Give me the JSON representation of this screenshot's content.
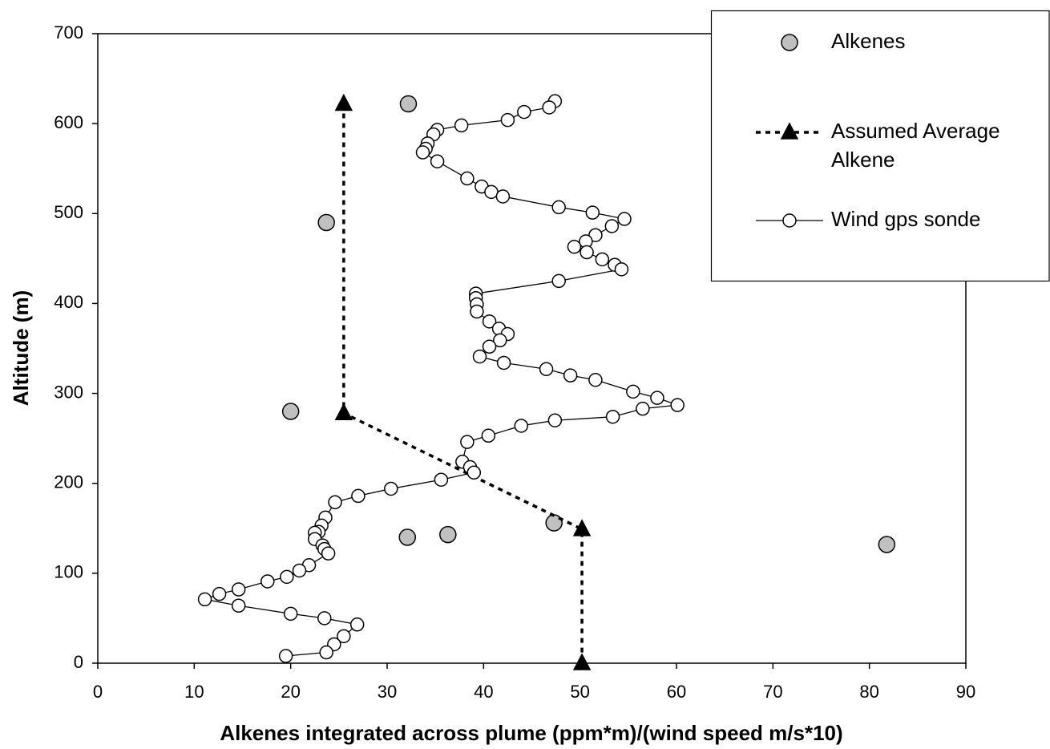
{
  "chart_data": {
    "type": "scatter",
    "xlabel": "Alkenes integrated across plume (ppm*m)/(wind speed m/s*10)",
    "ylabel": "Altitude (m)",
    "xlim": [
      0,
      90
    ],
    "xticks": [
      0,
      10,
      20,
      30,
      40,
      50,
      60,
      70,
      80,
      90
    ],
    "ylim": [
      0,
      700
    ],
    "yticks": [
      0,
      100,
      200,
      300,
      400,
      500,
      600,
      700
    ],
    "grid": false,
    "legend": "upper right",
    "series": [
      {
        "name": "Alkenes",
        "color": "#000000",
        "marker": "circle",
        "marker_fill": "#c0c0c0",
        "line": "none",
        "x": [
          32.2,
          23.7,
          20,
          32.1,
          36.3,
          47.3,
          81.8
        ],
        "values": [
          622,
          490,
          280,
          140,
          143,
          156,
          132
        ]
      },
      {
        "name": "Assumed Average Alkene",
        "color": "#000000",
        "marker": "triangle",
        "marker_fill": "#000000",
        "line": "dashed",
        "x": [
          25.5,
          25.5,
          50.2,
          50.2
        ],
        "values": [
          622,
          278,
          149,
          0
        ]
      },
      {
        "name": "Wind gps sonde",
        "color": "#000000",
        "marker": "circle",
        "marker_fill": "#ffffff",
        "line": "solid",
        "x": [
          47.4,
          46.8,
          44.2,
          42.5,
          37.7,
          35.2,
          34.8,
          34.2,
          34.0,
          33.7,
          35.2,
          38.3,
          39.8,
          40.8,
          42.0,
          47.8,
          51.3,
          54.6,
          53.3,
          51.6,
          50.6,
          49.4,
          50.7,
          52.3,
          53.6,
          54.3,
          47.8,
          39.2,
          39.2,
          39.3,
          39.3,
          40.6,
          41.6,
          42.5,
          41.7,
          40.6,
          39.6,
          42.1,
          46.5,
          49.0,
          51.6,
          55.5,
          58.0,
          60.1,
          56.5,
          53.4,
          47.4,
          43.9,
          40.5,
          38.3,
          37.8,
          38.6,
          39.0,
          35.6,
          30.4,
          27.0,
          24.6,
          23.6,
          23.2,
          22.9,
          22.5,
          22.5,
          23.3,
          23.5,
          23.9,
          21.9,
          20.9,
          19.6,
          17.6,
          14.6,
          12.6,
          11.1,
          14.6,
          20.0,
          23.5,
          26.9,
          25.5,
          24.5,
          23.7,
          19.5
        ],
        "values": [
          625,
          618,
          613,
          604,
          598,
          593,
          588,
          578,
          572,
          568,
          558,
          539,
          530,
          524,
          519,
          507,
          501,
          494,
          486,
          476,
          469,
          463,
          457,
          449,
          443,
          438,
          425,
          411,
          406,
          399,
          391,
          380,
          372,
          366,
          359,
          352,
          341,
          334,
          327,
          320,
          315,
          302,
          295,
          287,
          283,
          274,
          270,
          264,
          253,
          246,
          224,
          218,
          212,
          204,
          194,
          186,
          179,
          162,
          153,
          146,
          145,
          138,
          131,
          127,
          122,
          109,
          103,
          96,
          91,
          82,
          77,
          71,
          64,
          55,
          50,
          43,
          30,
          21,
          12,
          8
        ]
      }
    ]
  }
}
